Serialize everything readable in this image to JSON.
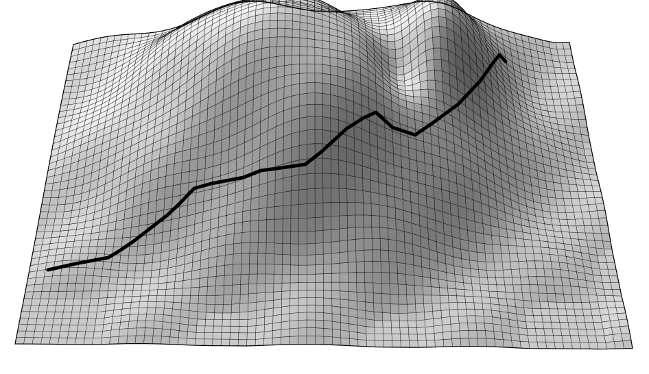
{
  "scene": {
    "subject": "terrain-wireframe",
    "colors": {
      "background": "#ffffff",
      "mesh_line": "#000000",
      "route_line": "#000000",
      "shade_light": "#f2f2f2",
      "shade_dark": "#4a4a4a"
    }
  }
}
